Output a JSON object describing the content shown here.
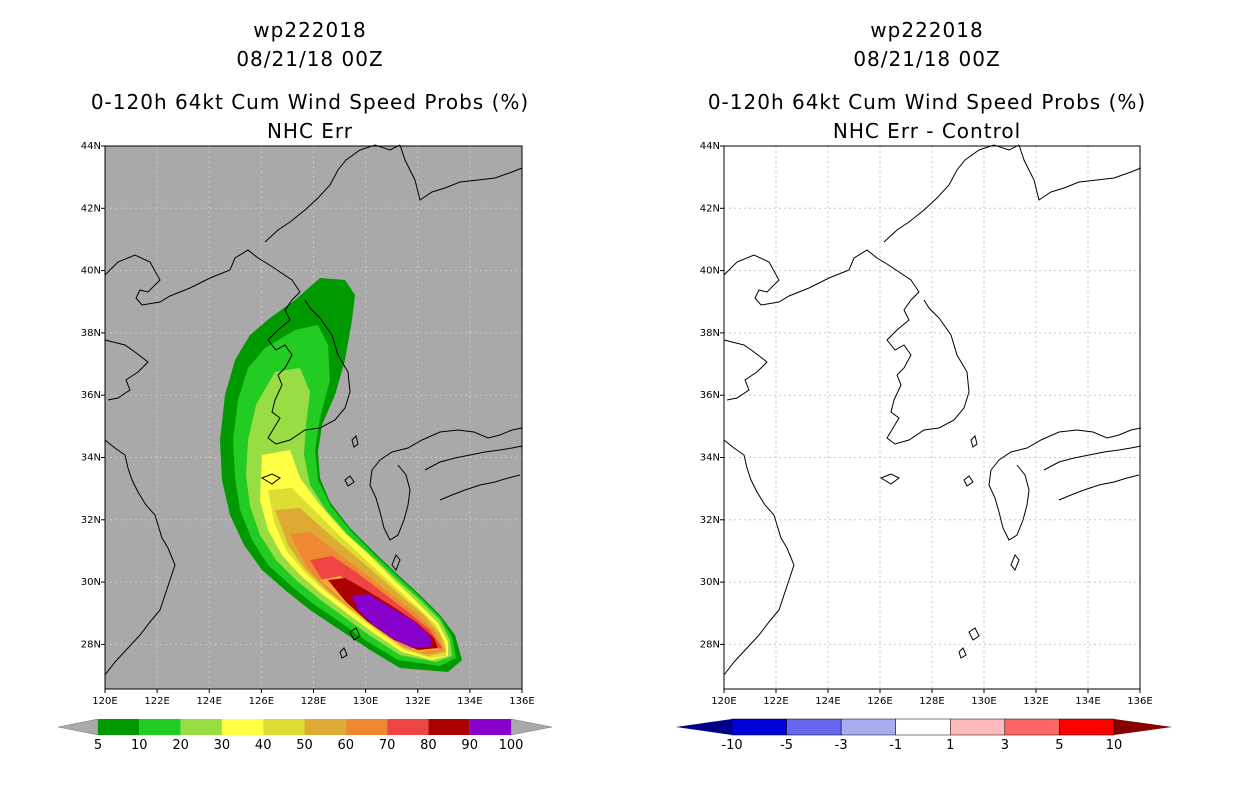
{
  "left_panel": {
    "storm_id": "wp222018",
    "datetime": "08/21/18 00Z",
    "title": "0-120h 64kt Cum Wind Speed Probs (%)",
    "subtitle": "NHC Err",
    "colorbar": {
      "labels": [
        "5",
        "10",
        "20",
        "30",
        "40",
        "50",
        "60",
        "70",
        "80",
        "90",
        "100"
      ],
      "colors": [
        "#009900",
        "#22cc22",
        "#99dd44",
        "#ffff44",
        "#dddd33",
        "#ddaa33",
        "#ee8833",
        "#ee4444",
        "#aa0000",
        "#8800cc"
      ]
    }
  },
  "right_panel": {
    "storm_id": "wp222018",
    "datetime": "08/21/18 00Z",
    "title": "0-120h 64kt Cum Wind Speed Probs (%)",
    "subtitle": "NHC Err - Control",
    "colorbar": {
      "labels": [
        "-10",
        "-5",
        "-3",
        "-1",
        "1",
        "3",
        "5",
        "10"
      ],
      "colors": [
        "#0000dd",
        "#6666ee",
        "#aaaaee",
        "#ffffff",
        "#ffbbbb",
        "#ff6666",
        "#ff0000",
        "#880000"
      ]
    }
  },
  "axes": {
    "lon_labels": [
      "120E",
      "122E",
      "124E",
      "126E",
      "128E",
      "130E",
      "132E",
      "134E",
      "136E"
    ],
    "lat_labels": [
      "44N",
      "42N",
      "40N",
      "38N",
      "36N",
      "34N",
      "32N",
      "30N",
      "28N"
    ]
  },
  "colors": {
    "background_left": "#a9a9a9",
    "background_right": "#ffffff",
    "grid": "#c8c8c8"
  }
}
